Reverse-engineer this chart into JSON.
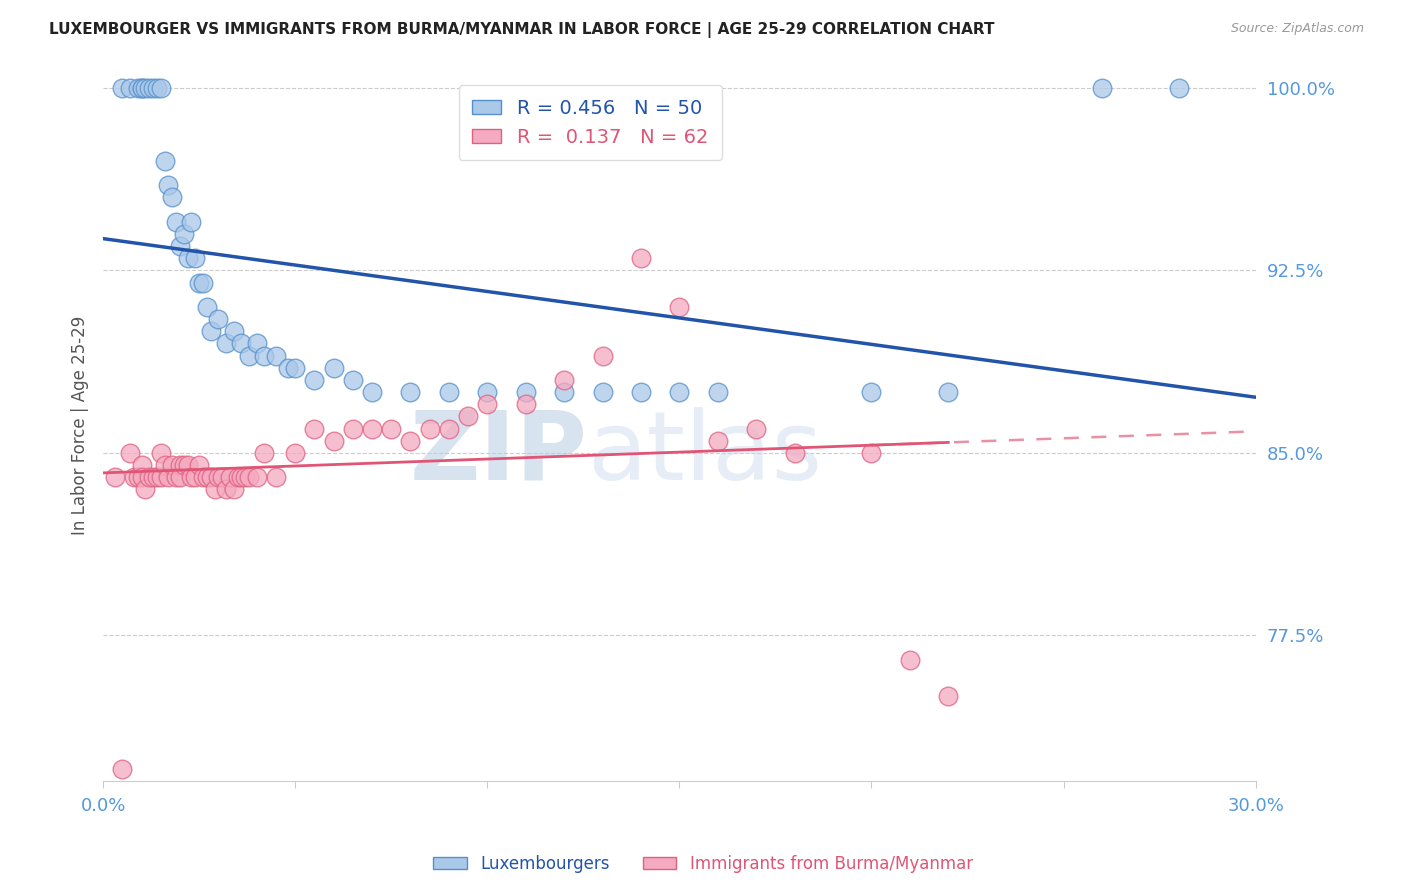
{
  "title": "LUXEMBOURGER VS IMMIGRANTS FROM BURMA/MYANMAR IN LABOR FORCE | AGE 25-29 CORRELATION CHART",
  "source": "Source: ZipAtlas.com",
  "ylabel": "In Labor Force | Age 25-29",
  "xlim": [
    0.0,
    0.3
  ],
  "ylim": [
    0.715,
    1.008
  ],
  "xticks": [
    0.0,
    0.05,
    0.1,
    0.15,
    0.2,
    0.25,
    0.3
  ],
  "xticklabels": [
    "0.0%",
    "",
    "",
    "",
    "",
    "",
    "30.0%"
  ],
  "yticks": [
    0.775,
    0.85,
    0.925,
    1.0
  ],
  "yticklabels": [
    "77.5%",
    "85.0%",
    "92.5%",
    "100.0%"
  ],
  "blue_R": 0.456,
  "blue_N": 50,
  "pink_R": 0.137,
  "pink_N": 62,
  "blue_color": "#aac8e8",
  "pink_color": "#f4aac0",
  "blue_edge_color": "#5590cc",
  "pink_edge_color": "#e06080",
  "blue_line_color": "#2255aa",
  "pink_line_color": "#e05575",
  "axis_tick_color": "#5599dd",
  "grid_color": "#cccccc",
  "watermark_zip": "ZIP",
  "watermark_atlas": "atlas",
  "blue_scatter_x": [
    0.005,
    0.007,
    0.009,
    0.01,
    0.01,
    0.011,
    0.012,
    0.013,
    0.014,
    0.015,
    0.016,
    0.017,
    0.018,
    0.019,
    0.02,
    0.021,
    0.022,
    0.023,
    0.024,
    0.025,
    0.026,
    0.027,
    0.028,
    0.03,
    0.032,
    0.034,
    0.036,
    0.038,
    0.04,
    0.042,
    0.045,
    0.048,
    0.05,
    0.055,
    0.06,
    0.065,
    0.07,
    0.08,
    0.09,
    0.1,
    0.11,
    0.12,
    0.13,
    0.14,
    0.15,
    0.16,
    0.2,
    0.22,
    0.26,
    0.28
  ],
  "blue_scatter_y": [
    1.0,
    1.0,
    1.0,
    1.0,
    1.0,
    1.0,
    1.0,
    1.0,
    1.0,
    1.0,
    0.97,
    0.96,
    0.955,
    0.945,
    0.935,
    0.94,
    0.93,
    0.945,
    0.93,
    0.92,
    0.92,
    0.91,
    0.9,
    0.905,
    0.895,
    0.9,
    0.895,
    0.89,
    0.895,
    0.89,
    0.89,
    0.885,
    0.885,
    0.88,
    0.885,
    0.88,
    0.875,
    0.875,
    0.875,
    0.875,
    0.875,
    0.875,
    0.875,
    0.875,
    0.875,
    0.875,
    0.875,
    0.875,
    1.0,
    1.0
  ],
  "pink_scatter_x": [
    0.003,
    0.005,
    0.007,
    0.008,
    0.009,
    0.01,
    0.01,
    0.011,
    0.012,
    0.013,
    0.014,
    0.015,
    0.015,
    0.016,
    0.017,
    0.018,
    0.019,
    0.02,
    0.02,
    0.021,
    0.022,
    0.023,
    0.024,
    0.025,
    0.026,
    0.027,
    0.028,
    0.029,
    0.03,
    0.031,
    0.032,
    0.033,
    0.034,
    0.035,
    0.036,
    0.037,
    0.038,
    0.04,
    0.042,
    0.045,
    0.05,
    0.055,
    0.06,
    0.065,
    0.07,
    0.075,
    0.08,
    0.085,
    0.09,
    0.095,
    0.1,
    0.11,
    0.12,
    0.13,
    0.14,
    0.15,
    0.16,
    0.17,
    0.18,
    0.2,
    0.21,
    0.22
  ],
  "pink_scatter_y": [
    0.84,
    0.72,
    0.85,
    0.84,
    0.84,
    0.845,
    0.84,
    0.835,
    0.84,
    0.84,
    0.84,
    0.85,
    0.84,
    0.845,
    0.84,
    0.845,
    0.84,
    0.845,
    0.84,
    0.845,
    0.845,
    0.84,
    0.84,
    0.845,
    0.84,
    0.84,
    0.84,
    0.835,
    0.84,
    0.84,
    0.835,
    0.84,
    0.835,
    0.84,
    0.84,
    0.84,
    0.84,
    0.84,
    0.85,
    0.84,
    0.85,
    0.86,
    0.855,
    0.86,
    0.86,
    0.86,
    0.855,
    0.86,
    0.86,
    0.865,
    0.87,
    0.87,
    0.88,
    0.89,
    0.93,
    0.91,
    0.855,
    0.86,
    0.85,
    0.85,
    0.765,
    0.75
  ],
  "pink_line_solid_end": 0.22,
  "pink_line_dash_end": 0.3
}
